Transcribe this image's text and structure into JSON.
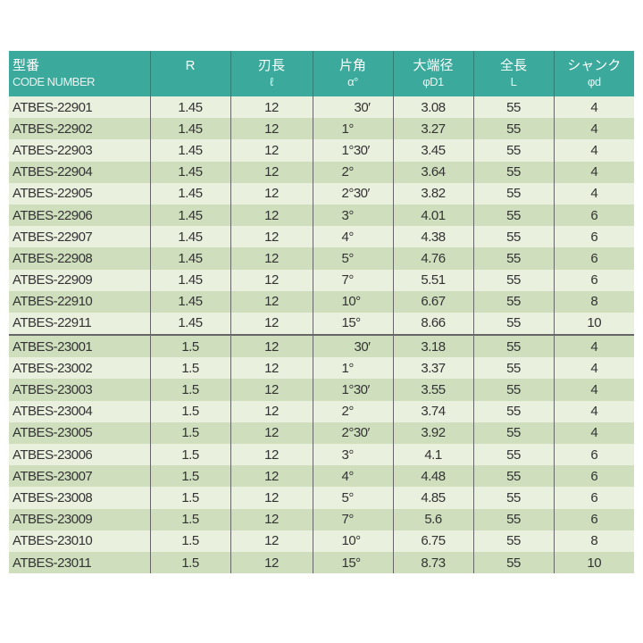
{
  "header": [
    {
      "label": "型番",
      "sub": "CODE NUMBER"
    },
    {
      "label": "R",
      "sub": ""
    },
    {
      "label": "刃長",
      "sub": "ℓ"
    },
    {
      "label": "片角",
      "sub": "α°"
    },
    {
      "label": "大端径",
      "sub": "φD1"
    },
    {
      "label": "全長",
      "sub": "L"
    },
    {
      "label": "シャンク",
      "sub": "φd"
    }
  ],
  "colors": {
    "header_bg": "#3ba99b",
    "row_light": "#e9f0de",
    "row_dark": "#cfdfbd"
  },
  "rows": [
    [
      "ATBES-22901",
      "1.45",
      "12",
      "30′",
      "3.08",
      "55",
      "4"
    ],
    [
      "ATBES-22902",
      "1.45",
      "12",
      "1°",
      "3.27",
      "55",
      "4"
    ],
    [
      "ATBES-22903",
      "1.45",
      "12",
      "1°30′",
      "3.45",
      "55",
      "4"
    ],
    [
      "ATBES-22904",
      "1.45",
      "12",
      "2°",
      "3.64",
      "55",
      "4"
    ],
    [
      "ATBES-22905",
      "1.45",
      "12",
      "2°30′",
      "3.82",
      "55",
      "4"
    ],
    [
      "ATBES-22906",
      "1.45",
      "12",
      "3°",
      "4.01",
      "55",
      "6"
    ],
    [
      "ATBES-22907",
      "1.45",
      "12",
      "4°",
      "4.38",
      "55",
      "6"
    ],
    [
      "ATBES-22908",
      "1.45",
      "12",
      "5°",
      "4.76",
      "55",
      "6"
    ],
    [
      "ATBES-22909",
      "1.45",
      "12",
      "7°",
      "5.51",
      "55",
      "6"
    ],
    [
      "ATBES-22910",
      "1.45",
      "12",
      "10°",
      "6.67",
      "55",
      "8"
    ],
    [
      "ATBES-22911",
      "1.45",
      "12",
      "15°",
      "8.66",
      "55",
      "10"
    ],
    [
      "ATBES-23001",
      "1.5",
      "12",
      "30′",
      "3.18",
      "55",
      "4"
    ],
    [
      "ATBES-23002",
      "1.5",
      "12",
      "1°",
      "3.37",
      "55",
      "4"
    ],
    [
      "ATBES-23003",
      "1.5",
      "12",
      "1°30′",
      "3.55",
      "55",
      "4"
    ],
    [
      "ATBES-23004",
      "1.5",
      "12",
      "2°",
      "3.74",
      "55",
      "4"
    ],
    [
      "ATBES-23005",
      "1.5",
      "12",
      "2°30′",
      "3.92",
      "55",
      "4"
    ],
    [
      "ATBES-23006",
      "1.5",
      "12",
      "3°",
      "4.1",
      "55",
      "6"
    ],
    [
      "ATBES-23007",
      "1.5",
      "12",
      "4°",
      "4.48",
      "55",
      "6"
    ],
    [
      "ATBES-23008",
      "1.5",
      "12",
      "5°",
      "4.85",
      "55",
      "6"
    ],
    [
      "ATBES-23009",
      "1.5",
      "12",
      "7°",
      "5.6",
      "55",
      "6"
    ],
    [
      "ATBES-23010",
      "1.5",
      "12",
      "10°",
      "6.75",
      "55",
      "8"
    ],
    [
      "ATBES-23011",
      "1.5",
      "12",
      "15°",
      "8.73",
      "55",
      "10"
    ]
  ]
}
